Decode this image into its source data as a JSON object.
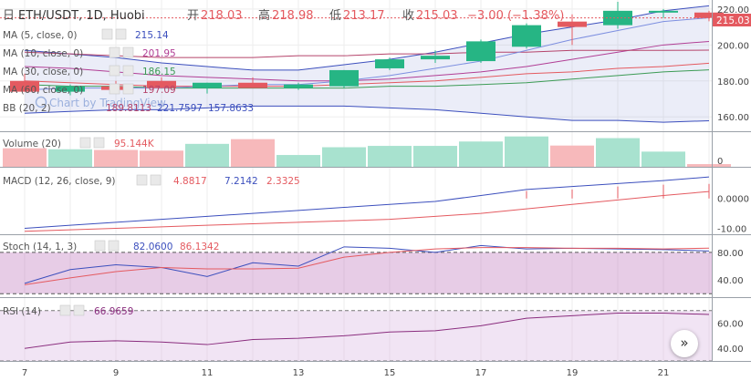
{
  "header": {
    "symbol": "ETH/USDT, 1D, Huobi",
    "open_label": "开",
    "open": "218.03",
    "high_label": "高",
    "high": "218.98",
    "low_label": "低",
    "low": "213.17",
    "close_label": "收",
    "close": "215.03",
    "change": "−3.00 (−1.38%)"
  },
  "watermark": "Chart by TradingView",
  "indicators": {
    "ma5": {
      "label": "MA (5, close, 0)",
      "value": "215.14",
      "color": "#3c4fbd"
    },
    "ma10": {
      "label": "MA (10, close, 0)",
      "value": "201.95",
      "color": "#b13e95"
    },
    "ma30": {
      "label": "MA (30, close, 0)",
      "value": "186.15",
      "color": "#3c9b55"
    },
    "ma60": {
      "label": "MA (60, close, 0)",
      "value": "197.09",
      "color": "#b5446b"
    },
    "bb": {
      "label": "BB (20, 2)",
      "basis": "189.8113",
      "upper": "221.7597",
      "lower": "157.8633"
    },
    "volume": {
      "label": "Volume (20)",
      "value": "95.144K"
    },
    "macd": {
      "label": "MACD (12, 26, close, 9)",
      "hist": "4.8817",
      "macd": "7.2142",
      "signal": "2.3325"
    },
    "stoch": {
      "label": "Stoch (14, 1, 3)",
      "k": "82.0600",
      "d": "86.1342"
    },
    "rsi": {
      "label": "RSI (14)",
      "value": "66.9659"
    }
  },
  "price_tag": "215.03",
  "colors": {
    "up": "#26b584",
    "down": "#e45a60",
    "grid": "#eeeeee"
  },
  "chart_data": {
    "type": "candlestick",
    "x": [
      7,
      8,
      9,
      10,
      11,
      12,
      13,
      14,
      15,
      16,
      17,
      18,
      19,
      20,
      21,
      22
    ],
    "x_tick_labels": [
      "7",
      "9",
      "11",
      "13",
      "15",
      "17",
      "19",
      "21"
    ],
    "candles": [
      {
        "o": 180,
        "h": 184,
        "l": 174,
        "c": 174
      },
      {
        "o": 174,
        "h": 178,
        "l": 172,
        "c": 177
      },
      {
        "o": 177,
        "h": 180,
        "l": 174,
        "c": 175
      },
      {
        "o": 180,
        "h": 182,
        "l": 176,
        "c": 176
      },
      {
        "o": 176,
        "h": 179,
        "l": 173,
        "c": 179
      },
      {
        "o": 179,
        "h": 182,
        "l": 176,
        "c": 176
      },
      {
        "o": 176,
        "h": 179,
        "l": 175,
        "c": 178
      },
      {
        "o": 177,
        "h": 186,
        "l": 176,
        "c": 186
      },
      {
        "o": 187,
        "h": 193,
        "l": 186,
        "c": 192
      },
      {
        "o": 192,
        "h": 197,
        "l": 190,
        "c": 194
      },
      {
        "o": 191,
        "h": 203,
        "l": 190,
        "c": 202
      },
      {
        "o": 199,
        "h": 212,
        "l": 198,
        "c": 211
      },
      {
        "o": 213,
        "h": 217,
        "l": 200,
        "c": 210
      },
      {
        "o": 211,
        "h": 224,
        "l": 209,
        "c": 219
      },
      {
        "o": 218,
        "h": 220,
        "l": 215,
        "c": 219
      },
      {
        "o": 218.03,
        "h": 218.98,
        "l": 213.17,
        "c": 215.03
      }
    ],
    "price_axis": {
      "ticks": [
        160,
        180,
        200,
        220
      ],
      "ylim": [
        152,
        225
      ]
    },
    "ma5": [
      175,
      176,
      176,
      176,
      177,
      178,
      178,
      180,
      183,
      187,
      191,
      197,
      203,
      208,
      213,
      215.14
    ],
    "ma10": [
      188,
      187,
      185,
      183,
      182,
      181,
      180,
      180,
      181,
      183,
      185,
      188,
      192,
      196,
      200,
      201.95
    ],
    "ma30": [
      178,
      177,
      177,
      176,
      176,
      176,
      176,
      176,
      177,
      177,
      178,
      179,
      181,
      183,
      185,
      186.15
    ],
    "ma60": [
      196,
      195,
      194,
      193,
      193,
      193,
      194,
      194,
      195,
      195,
      196,
      196,
      197,
      197,
      197,
      197.09
    ],
    "bb_upper": [
      197,
      195,
      193,
      190,
      188,
      186,
      186,
      189,
      192,
      196,
      201,
      206,
      210,
      214,
      219,
      221.76
    ],
    "bb_basis": [
      180,
      179,
      178,
      177,
      177,
      177,
      177,
      178,
      179,
      180,
      182,
      184,
      185,
      187,
      188,
      189.81
    ],
    "bb_lower": [
      162,
      163,
      164,
      164,
      165,
      166,
      166,
      166,
      165,
      164,
      162,
      160,
      158,
      158,
      157,
      157.86
    ],
    "volume": {
      "values": [
        55,
        52,
        50,
        48,
        68,
        82,
        35,
        58,
        62,
        62,
        75,
        90,
        63,
        85,
        45,
        8
      ],
      "max": 100
    },
    "macd": {
      "ylim": [
        -12,
        10
      ],
      "ticks": [
        0,
        -10
      ],
      "macd_line": [
        -10,
        -9,
        -8,
        -7,
        -6,
        -5,
        -4,
        -3,
        -2,
        -1,
        1,
        3,
        4,
        5,
        6,
        7.21
      ],
      "signal_line": [
        -11,
        -10.5,
        -10,
        -9.5,
        -9,
        -8.5,
        -8,
        -7.5,
        -7,
        -6,
        -5,
        -3.5,
        -2,
        -0.5,
        1,
        2.33
      ],
      "hist": [
        0,
        0,
        0,
        0,
        0,
        0,
        0,
        0,
        0,
        0,
        0,
        2.5,
        3,
        4,
        4.6,
        4.88
      ]
    },
    "stoch": {
      "ylim": [
        15,
        105
      ],
      "ticks": [
        80,
        40
      ],
      "bands": [
        80,
        20
      ],
      "k": [
        35,
        55,
        62,
        58,
        45,
        65,
        60,
        88,
        86,
        80,
        90,
        85,
        86,
        85,
        84,
        82.06
      ],
      "d": [
        33,
        43,
        52,
        58,
        56,
        56,
        57,
        73,
        80,
        85,
        87,
        87,
        86,
        86,
        85,
        86.13
      ]
    },
    "rsi": {
      "ylim": [
        30,
        80
      ],
      "ticks": [
        60,
        40
      ],
      "bands": [
        70,
        30
      ],
      "values": [
        40,
        45,
        46,
        45,
        43,
        47,
        48,
        50,
        53,
        54,
        58,
        64,
        66,
        68,
        68,
        66.97
      ]
    }
  }
}
